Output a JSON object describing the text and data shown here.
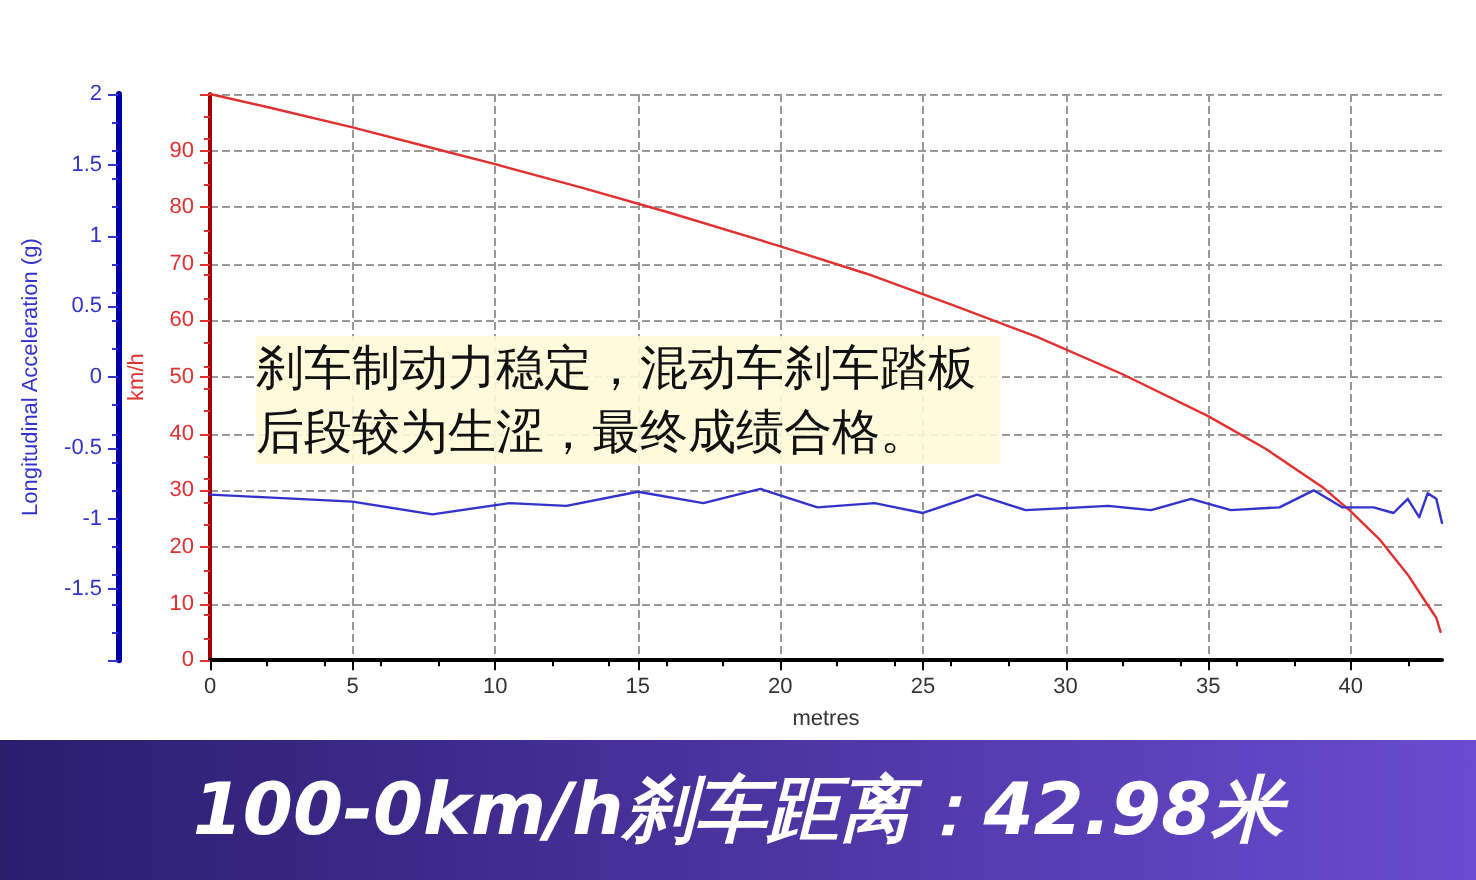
{
  "chart_data": {
    "type": "line",
    "title": "100-0km/h刹车距离：42.98米",
    "xlabel": "metres",
    "ylabel": "km/h",
    "y2label": "Longitudinal Acceleration (g)",
    "annotations": [
      "刹车制动力稳定，混动车刹车踏板后段较为生涩，最终成绩合格。"
    ],
    "series": [
      {
        "color": "#e03030",
        "x": [
          0,
          2,
          5,
          8,
          10,
          13,
          16,
          20,
          23,
          26,
          29,
          32,
          35,
          37,
          39,
          40,
          41,
          42,
          42.6,
          43.0,
          43.15
        ],
        "values": [
          100,
          97.7,
          94.1,
          90.2,
          87.6,
          83.5,
          79.2,
          73.1,
          68.3,
          62.8,
          57.1,
          50.5,
          43.1,
          37.4,
          30.6,
          26.3,
          21.4,
          15.1,
          10.5,
          7.5,
          5
        ]
      },
      {
        "color": "#3333cc",
        "axis": "y2",
        "x": [
          0,
          2,
          5,
          7.8,
          10.5,
          12.5,
          15,
          17.3,
          19.3,
          21.3,
          23.3,
          25,
          26.9,
          28.6,
          31.5,
          33,
          34.4,
          35.8,
          37.5,
          38.7,
          39.7,
          40.8,
          41.5,
          42.0,
          42.4,
          42.7,
          43.0,
          43.2
        ],
        "values": [
          -0.83,
          -0.85,
          -0.88,
          -0.97,
          -0.89,
          -0.91,
          -0.81,
          -0.89,
          -0.79,
          -0.92,
          -0.89,
          -0.96,
          -0.83,
          -0.94,
          -0.91,
          -0.94,
          -0.86,
          -0.94,
          -0.92,
          -0.8,
          -0.92,
          -0.92,
          -0.96,
          -0.86,
          -0.99,
          -0.82,
          -0.86,
          -1.03
        ]
      }
    ],
    "xlim": [
      0,
      43.2
    ],
    "xticks": [
      0,
      5,
      10,
      15,
      20,
      25,
      30,
      35,
      40
    ],
    "ylim": [
      0,
      100
    ],
    "yticks": [
      0,
      10,
      20,
      30,
      40,
      50,
      60,
      70,
      80,
      90,
      {
        "value": 100,
        "label": null
      }
    ],
    "y2lim": [
      -2,
      2
    ],
    "y2ticks": [
      {
        "value": -2,
        "label": null
      },
      -1.5,
      -1,
      -0.5,
      0,
      0.5,
      1,
      1.5,
      2
    ],
    "grid": true,
    "marker": "none",
    "line_style": "solid"
  }
}
